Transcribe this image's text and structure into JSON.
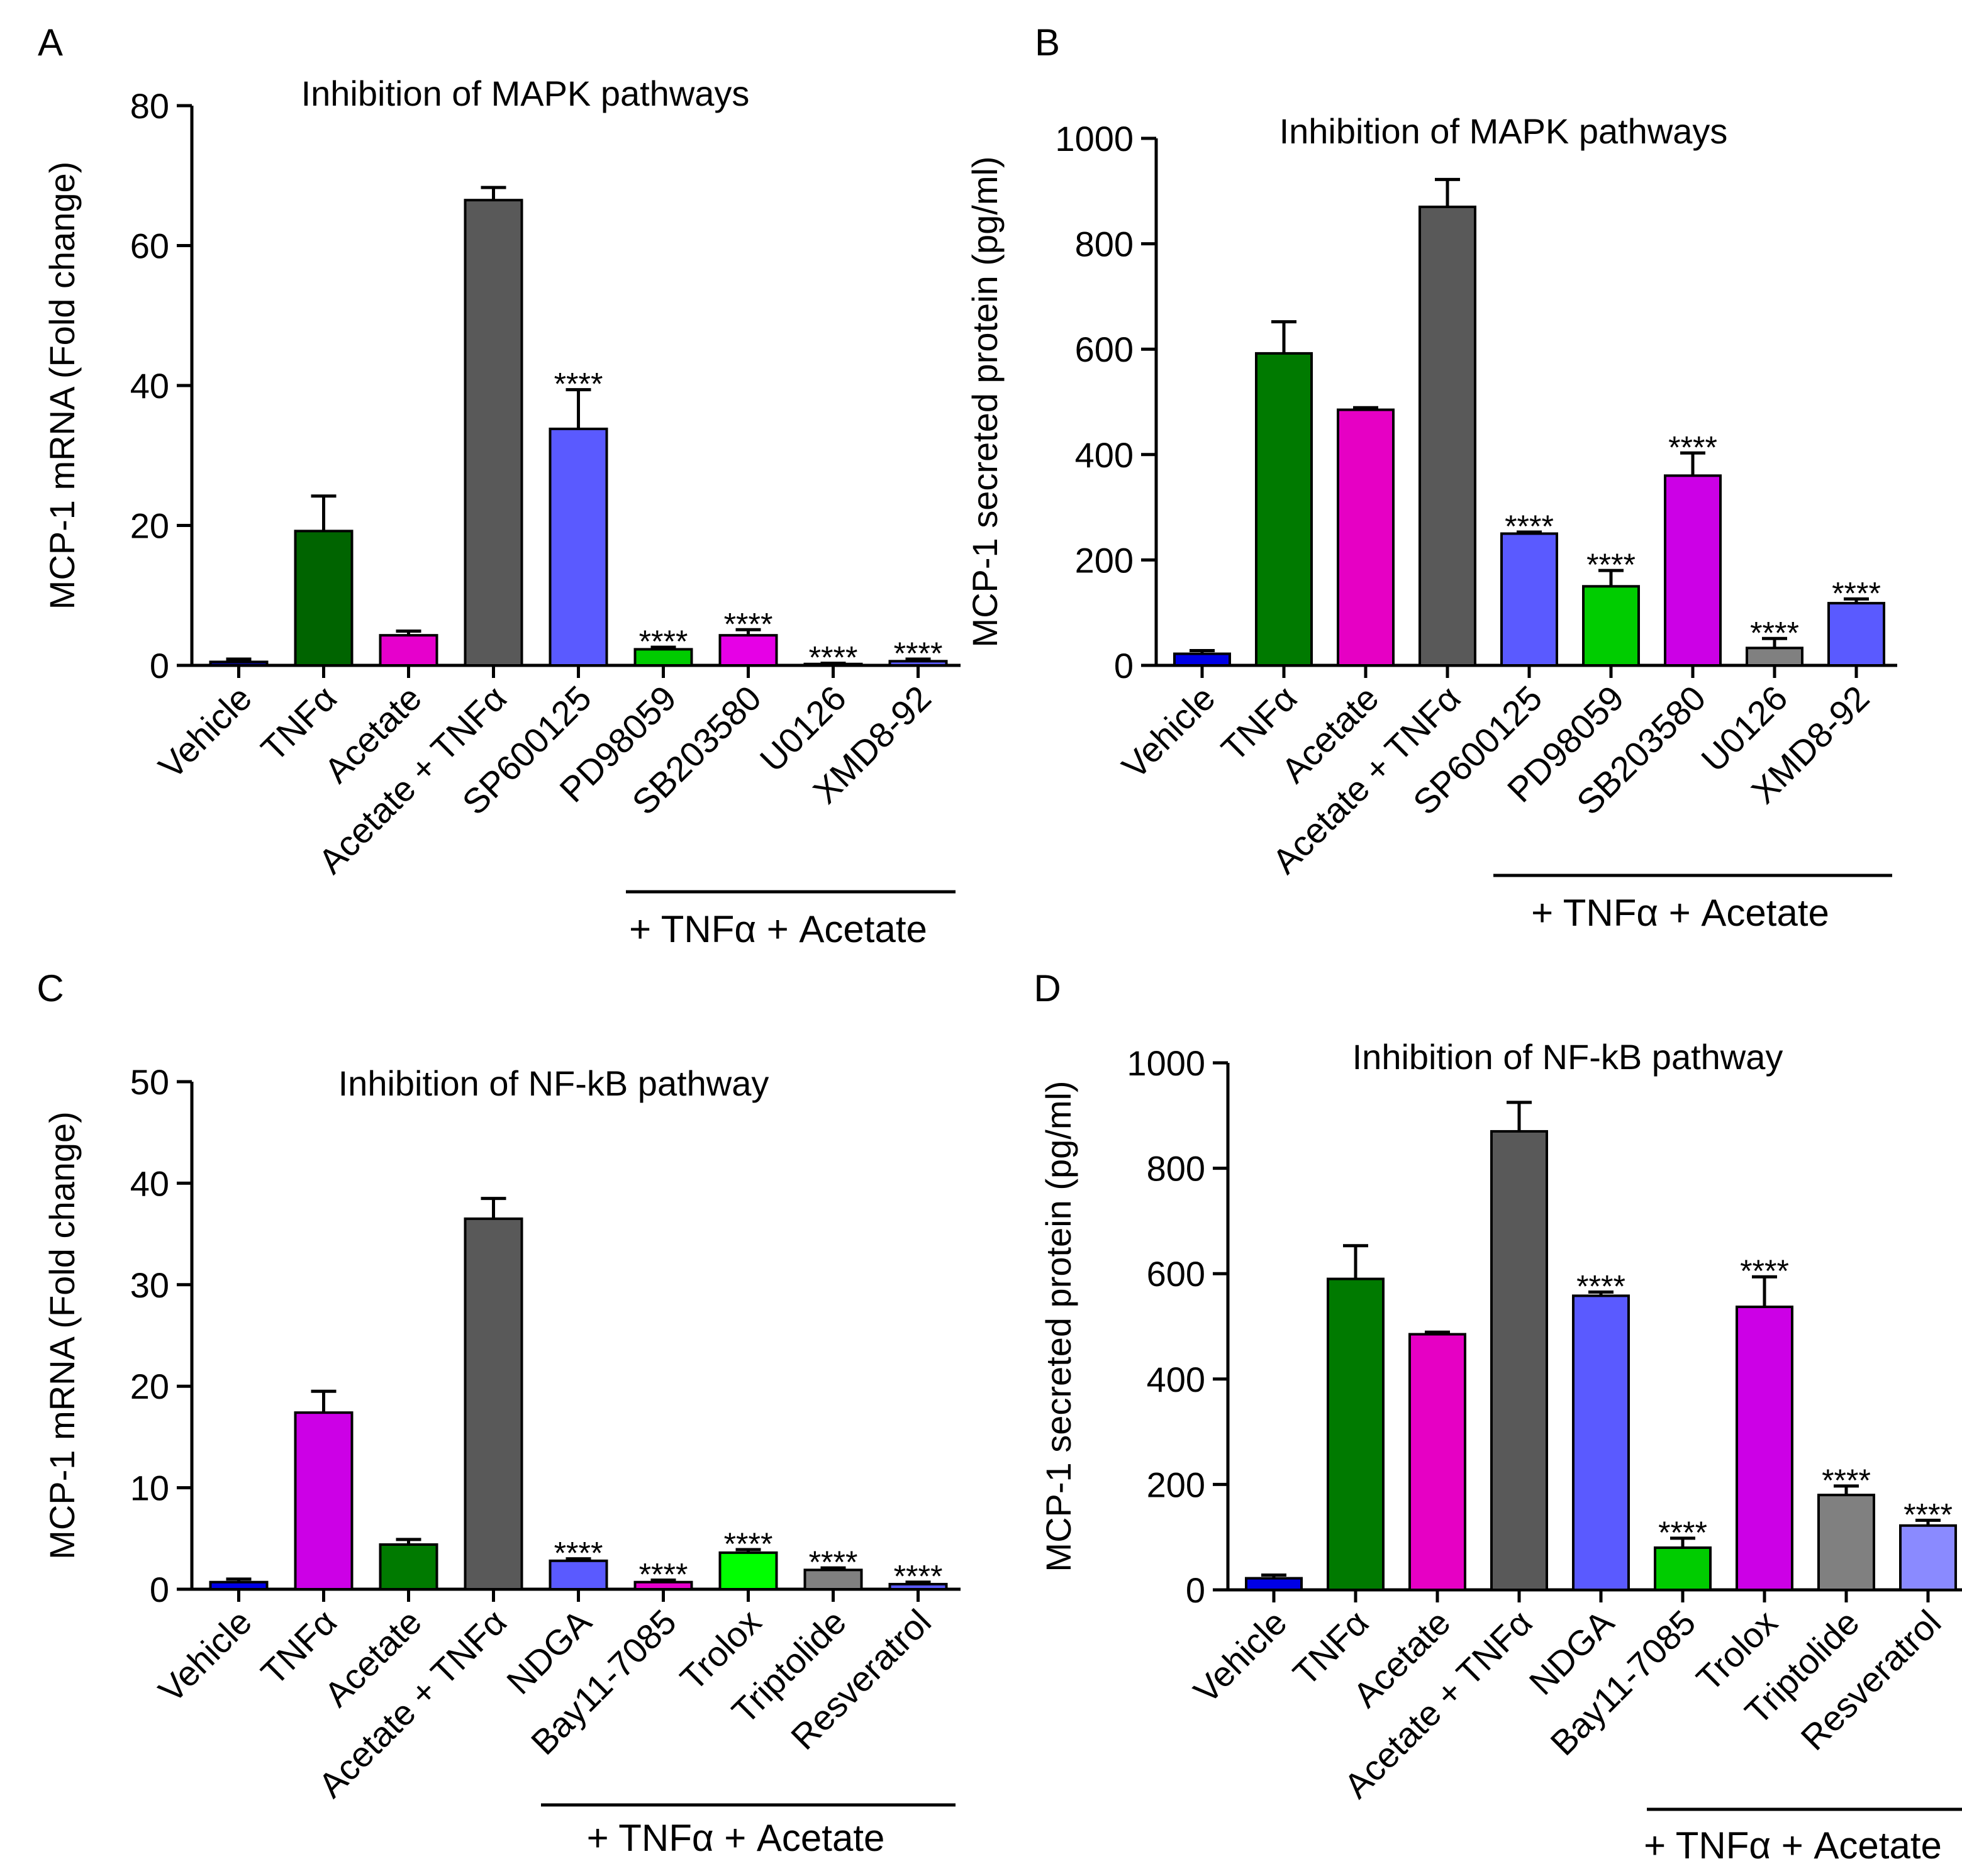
{
  "chart_data": [
    {
      "panel_label": "A",
      "type": "bar",
      "title": "Inhibition of MAPK pathways",
      "ylabel": "MCP-1 mRNA (Fold change)",
      "ylim": [
        0,
        80
      ],
      "yticks": [
        "0",
        "20",
        "40",
        "60",
        "80"
      ],
      "group_label": "+ TNFα +  Acetate",
      "categories": [
        "Vehicle",
        "TNFα",
        "Acetate",
        "Acetate + TNFα",
        "SP600125",
        "PD98059",
        "SB203580",
        "U0126",
        "XMD8-92"
      ],
      "values": [
        0.5,
        19.2,
        4.3,
        66.5,
        33.8,
        2.3,
        4.3,
        0.2,
        0.6
      ],
      "errors": [
        0.4,
        5.0,
        0.6,
        1.8,
        5.6,
        0.3,
        0.8,
        0.1,
        0.3
      ],
      "colors": [
        "#0a0a8c",
        "#006400",
        "#e600cc",
        "#595959",
        "#5a5aff",
        "#00cc00",
        "#e600e6",
        "#595959",
        "#5a5aff"
      ],
      "significance": [
        "",
        "",
        "",
        "",
        "****",
        "****",
        "****",
        "****",
        "****"
      ],
      "bracket_from": 5,
      "bracket_to": 8
    },
    {
      "panel_label": "B",
      "type": "bar",
      "title": "Inhibition of MAPK pathways",
      "ylabel": "MCP-1  secreted  protein (pg/ml)",
      "ylim": [
        0,
        1000
      ],
      "yticks": [
        "0",
        "200",
        "400",
        "600",
        "800",
        "1000"
      ],
      "group_label": "+ TNFα + Acetate",
      "categories": [
        "Vehicle",
        "TNFα",
        "Acetate",
        "Acetate + TNFα",
        "SP600125",
        "PD98059",
        "SB203580",
        "U0126",
        "XMD8-92"
      ],
      "values": [
        22,
        592,
        485,
        870,
        250,
        150,
        360,
        33,
        118
      ],
      "errors": [
        6,
        60,
        4,
        52,
        3,
        30,
        43,
        18,
        8
      ],
      "colors": [
        "#0000e6",
        "#007a00",
        "#e600c4",
        "#595959",
        "#5a5aff",
        "#00cc00",
        "#cc00e6",
        "#808080",
        "#5a5aff"
      ],
      "significance": [
        "",
        "",
        "",
        "",
        "****",
        "****",
        "****",
        "****",
        "****"
      ],
      "bracket_from": 4,
      "bracket_to": 8
    },
    {
      "panel_label": "C",
      "type": "bar",
      "title": "Inhibition of NF-kB pathway",
      "ylabel": "MCP-1 mRNA (Fold change)",
      "ylim": [
        0,
        50
      ],
      "yticks": [
        "0",
        "10",
        "20",
        "30",
        "40",
        "50"
      ],
      "group_label": "+ TNFα +  Acetate",
      "categories": [
        "Vehicle",
        "TNFα",
        "Acetate",
        "Acetate + TNFα",
        "NDGA",
        "Bay11-7085",
        "Trolox",
        "Triptolide",
        "Resveratrol"
      ],
      "values": [
        0.7,
        17.4,
        4.4,
        36.5,
        2.8,
        0.7,
        3.6,
        1.9,
        0.5
      ],
      "errors": [
        0.3,
        2.1,
        0.5,
        2.0,
        0.2,
        0.2,
        0.3,
        0.2,
        0.2
      ],
      "colors": [
        "#0000e6",
        "#cc00e6",
        "#007a00",
        "#595959",
        "#5a5aff",
        "#e600cc",
        "#00ff00",
        "#808080",
        "#5a5aff"
      ],
      "significance": [
        "",
        "",
        "",
        "",
        "****",
        "****",
        "****",
        "****",
        "****"
      ],
      "bracket_from": 4,
      "bracket_to": 8
    },
    {
      "panel_label": "D",
      "type": "bar",
      "title": "Inhibition of NF-kB pathway",
      "ylabel": "MCP-1  secreted  protein (pg/ml)",
      "ylim": [
        0,
        1000
      ],
      "yticks": [
        "0",
        "200",
        "400",
        "600",
        "800",
        "1000"
      ],
      "group_label": "+ TNFα +  Acetate",
      "categories": [
        "Vehicle",
        "TNFα",
        "Acetate",
        "Acetate + TNFα",
        "NDGA",
        "Bay11-7085",
        "Trolox",
        "Triptolide",
        "Resveratrol"
      ],
      "values": [
        22,
        590,
        485,
        870,
        558,
        80,
        537,
        180,
        122
      ],
      "errors": [
        6,
        63,
        4,
        55,
        7,
        18,
        57,
        17,
        10
      ],
      "colors": [
        "#0000e6",
        "#007a00",
        "#e600c4",
        "#595959",
        "#5a5aff",
        "#00cc00",
        "#cc00e6",
        "#808080",
        "#8a8aff"
      ],
      "significance": [
        "",
        "",
        "",
        "",
        "****",
        "****",
        "****",
        "****",
        "****"
      ],
      "bracket_from": 5,
      "bracket_to": 8
    }
  ]
}
